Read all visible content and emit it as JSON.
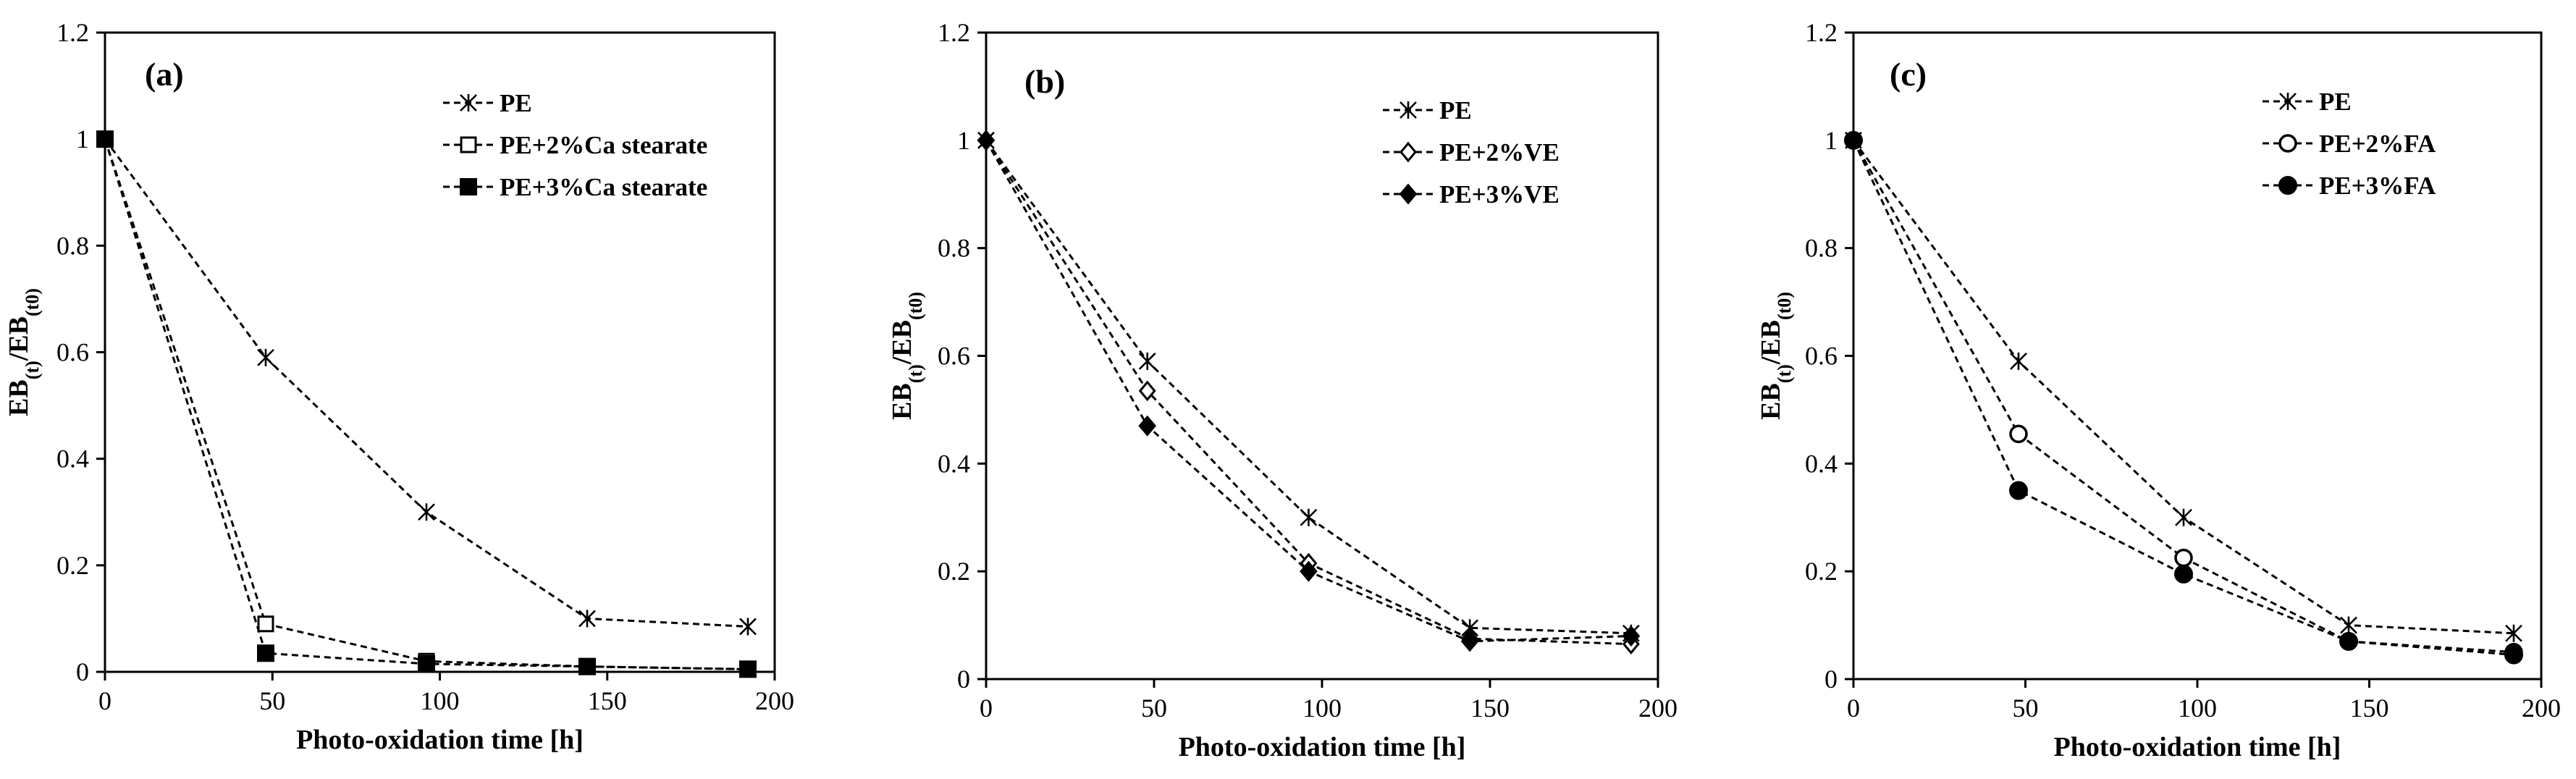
{
  "chart_data": [
    {
      "type": "line",
      "panel_label": "(a)",
      "xlabel": "Photo-oxidation time [h]",
      "ylabel": "EB(t)/EB(t0)",
      "ylabel_parts": {
        "main": "EB",
        "sub1": "(t)",
        "mid": "/EB",
        "sub2": "(t0)"
      },
      "xlim": [
        0,
        200
      ],
      "ylim": [
        0,
        1.2
      ],
      "xticks": [
        "0",
        "50",
        "100",
        "150",
        "200"
      ],
      "yticks": [
        "0",
        "0.2",
        "0.4",
        "0.6",
        "0.8",
        "1",
        "1.2"
      ],
      "legend_position": "top-right",
      "series": [
        {
          "name": "PE",
          "marker": "asterisk",
          "x": [
            0,
            48,
            96,
            144,
            192
          ],
          "values": [
            1.0,
            0.59,
            0.3,
            0.1,
            0.085
          ]
        },
        {
          "name": "PE+2%Ca stearate",
          "marker": "open-square",
          "x": [
            0,
            48,
            96,
            144,
            192
          ],
          "values": [
            1.0,
            0.09,
            0.02,
            0.01,
            0.005
          ]
        },
        {
          "name": "PE+3%Ca stearate",
          "marker": "filled-square",
          "x": [
            0,
            48,
            96,
            144,
            192
          ],
          "values": [
            1.0,
            0.035,
            0.015,
            0.01,
            0.005
          ]
        }
      ]
    },
    {
      "type": "line",
      "panel_label": "(b)",
      "xlabel": "Photo-oxidation time [h]",
      "ylabel": "EB(t)/EB(t0)",
      "ylabel_parts": {
        "main": "EB",
        "sub1": "(t)",
        "mid": "/EB",
        "sub2": "(t0)"
      },
      "xlim": [
        0,
        200
      ],
      "ylim": [
        0,
        1.2
      ],
      "xticks": [
        "0",
        "50",
        "100",
        "150",
        "200"
      ],
      "yticks": [
        "0",
        "0.2",
        "0.4",
        "0.6",
        "0.8",
        "1",
        "1.2"
      ],
      "legend_position": "top-right",
      "series": [
        {
          "name": "PE",
          "marker": "asterisk",
          "x": [
            0,
            48,
            96,
            144,
            192
          ],
          "values": [
            1.0,
            0.59,
            0.3,
            0.095,
            0.085
          ]
        },
        {
          "name": "PE+2%VE",
          "marker": "open-diamond",
          "x": [
            0,
            48,
            96,
            144,
            192
          ],
          "values": [
            1.0,
            0.535,
            0.215,
            0.075,
            0.065
          ]
        },
        {
          "name": "PE+3%VE",
          "marker": "filled-diamond",
          "x": [
            0,
            48,
            96,
            144,
            192
          ],
          "values": [
            1.0,
            0.47,
            0.2,
            0.07,
            0.08
          ]
        }
      ]
    },
    {
      "type": "line",
      "panel_label": "(c)",
      "xlabel": "Photo-oxidation time [h]",
      "ylabel": "EB(t)/EB(t0)",
      "ylabel_parts": {
        "main": "EB",
        "sub1": "(t)",
        "mid": "/EB",
        "sub2": "(t0)"
      },
      "xlim": [
        0,
        200
      ],
      "ylim": [
        0,
        1.2
      ],
      "xticks": [
        "0",
        "50",
        "100",
        "150",
        "200"
      ],
      "yticks": [
        "0",
        "0.2",
        "0.4",
        "0.6",
        "0.8",
        "1",
        "1.2"
      ],
      "legend_position": "top-right",
      "series": [
        {
          "name": "PE",
          "marker": "asterisk",
          "x": [
            0,
            48,
            96,
            144,
            192
          ],
          "values": [
            1.0,
            0.59,
            0.3,
            0.1,
            0.085
          ]
        },
        {
          "name": "PE+2%FA",
          "marker": "open-circle",
          "x": [
            0,
            48,
            96,
            144,
            192
          ],
          "values": [
            1.0,
            0.455,
            0.225,
            0.07,
            0.05
          ]
        },
        {
          "name": "PE+3%FA",
          "marker": "filled-circle",
          "x": [
            0,
            48,
            96,
            144,
            192
          ],
          "values": [
            1.0,
            0.35,
            0.195,
            0.07,
            0.045
          ]
        }
      ]
    }
  ]
}
